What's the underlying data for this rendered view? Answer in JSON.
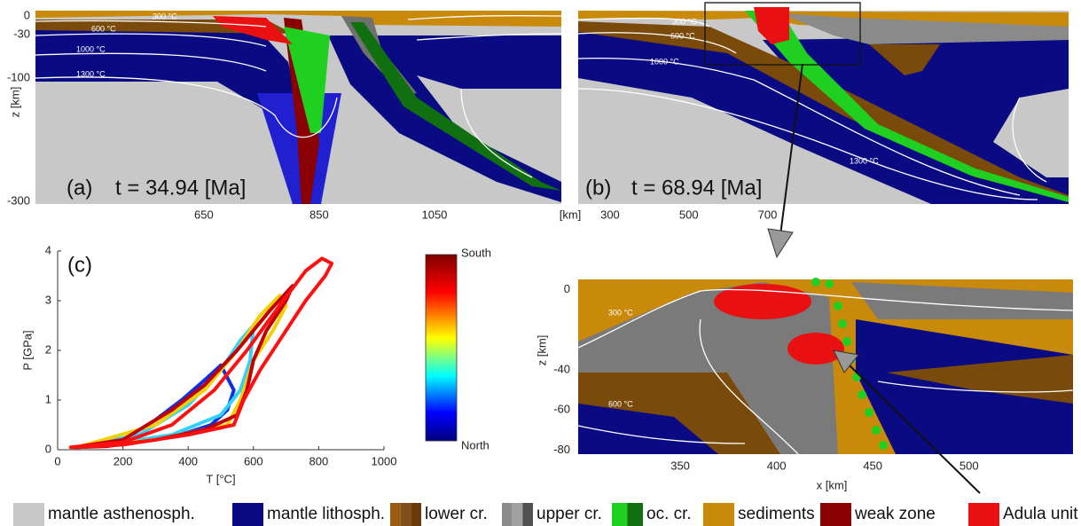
{
  "panel_a": {
    "label": "(a)",
    "time": "t = 34.94 [Ma]",
    "xlim": [
      358,
      1270
    ],
    "ylim": [
      -304,
      9
    ],
    "xticks": [
      650,
      850,
      1050
    ],
    "yticks": [
      0,
      -30,
      -100,
      -300
    ],
    "y_label": "z [km]",
    "x_unit": "[km]",
    "isotherms": [
      "300 °C",
      "600 °C",
      "1000 °C",
      "1300 °C"
    ]
  },
  "panel_b": {
    "label": "(b)",
    "time": "t = 68.94 [Ma]",
    "xlim": [
      219,
      1465
    ],
    "ylim": [
      -304,
      9
    ],
    "xticks": [
      300,
      500,
      700
    ],
    "isotherms": [
      "300 °C",
      "600 °C",
      "1000 °C",
      "1300 °C"
    ]
  },
  "panel_zoom": {
    "xlim": [
      297,
      554
    ],
    "ylim": [
      -82,
      5
    ],
    "xticks": [
      350,
      400,
      450,
      500
    ],
    "yticks": [
      0,
      -40,
      -60,
      -80
    ],
    "x_label": "x [km]",
    "y_label": "z [km]",
    "isotherms": [
      "300 °C",
      "600 °C"
    ]
  },
  "panel_c": {
    "label": "(c)",
    "xlim": [
      0,
      1000
    ],
    "ylim": [
      0,
      4
    ],
    "xticks": [
      0,
      200,
      400,
      600,
      800,
      1000
    ],
    "yticks": [
      0,
      1,
      2,
      3,
      4
    ],
    "x_label": "T [°C]",
    "y_label": "P [GPa]",
    "colorbar": {
      "top": "South",
      "bottom": "North"
    },
    "paths": [
      {
        "color": "#1030e0",
        "T": [
          60,
          200,
          300,
          380,
          450,
          500,
          540,
          520,
          470,
          400,
          300,
          150
        ],
        "P": [
          0.05,
          0.2,
          0.6,
          1.0,
          1.4,
          1.7,
          1.2,
          0.8,
          0.5,
          0.35,
          0.2,
          0.08
        ]
      },
      {
        "color": "#30d0ff",
        "T": [
          60,
          250,
          400,
          500,
          560,
          600,
          590,
          560,
          500,
          350,
          150
        ],
        "P": [
          0.05,
          0.3,
          0.9,
          1.6,
          2.2,
          2.5,
          1.8,
          1.2,
          0.7,
          0.3,
          0.1
        ]
      },
      {
        "color": "#f0d000",
        "T": [
          60,
          300,
          450,
          550,
          620,
          680,
          700,
          660,
          600,
          560,
          520,
          300,
          120
        ],
        "P": [
          0.05,
          0.5,
          1.2,
          2.0,
          2.7,
          3.1,
          2.9,
          2.4,
          1.8,
          1.0,
          0.5,
          0.2,
          0.07
        ]
      },
      {
        "color": "#c00000",
        "T": [
          50,
          200,
          350,
          450,
          550,
          650,
          720,
          700,
          640,
          600,
          580,
          550,
          450,
          300,
          150
        ],
        "P": [
          0.05,
          0.2,
          0.8,
          1.3,
          2.0,
          2.8,
          3.3,
          3.0,
          2.4,
          1.8,
          1.2,
          0.7,
          0.4,
          0.2,
          0.07
        ]
      },
      {
        "color": "#ff1010",
        "T": [
          40,
          200,
          350,
          480,
          580,
          680,
          760,
          810,
          840,
          820,
          760,
          690,
          620,
          570,
          540,
          400,
          200
        ],
        "P": [
          0.05,
          0.15,
          0.5,
          1.2,
          2.0,
          2.9,
          3.6,
          3.85,
          3.75,
          3.5,
          3.0,
          2.3,
          1.6,
          1.0,
          0.5,
          0.3,
          0.1
        ]
      }
    ]
  },
  "legend": [
    {
      "label": "mantle asthenosph.",
      "colors": [
        "#c8c8c8"
      ]
    },
    {
      "label": "mantle lithosph.",
      "colors": [
        "#0a0a82"
      ]
    },
    {
      "label": "lower cr.",
      "colors": [
        "#9a5a10",
        "#80501a",
        "#6a3a08"
      ]
    },
    {
      "label": "upper cr.",
      "colors": [
        "#8a8a8a",
        "#a0a0a0",
        "#505050"
      ]
    },
    {
      "label": "oc. cr.",
      "colors": [
        "#20d020",
        "#107010"
      ]
    },
    {
      "label": "sediments",
      "colors": [
        "#c98a0a"
      ]
    },
    {
      "label": "weak zone",
      "colors": [
        "#8b0000"
      ]
    },
    {
      "label": "Adula unit",
      "colors": [
        "#e81010"
      ]
    }
  ]
}
